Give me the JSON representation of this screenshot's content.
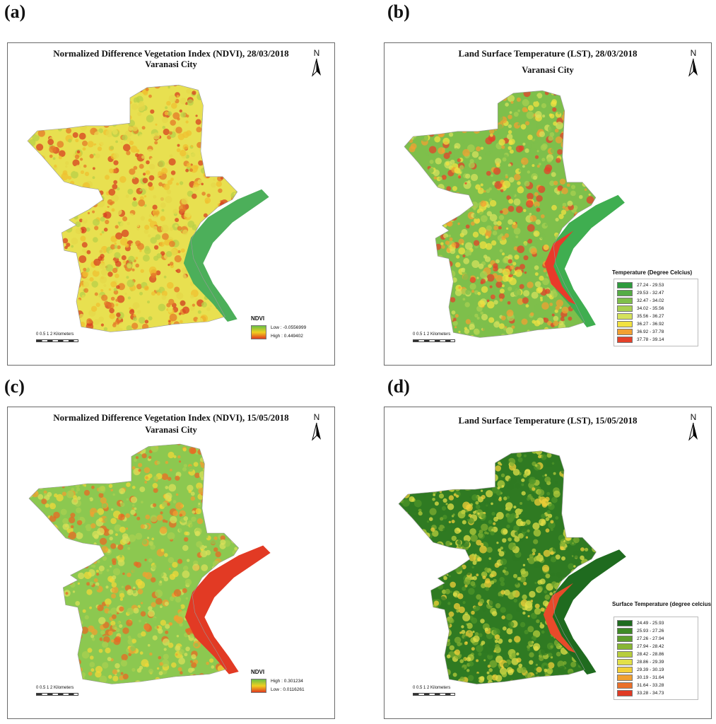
{
  "figure": {
    "panels": [
      {
        "letter": "(a)",
        "title": "Normalized Difference Vegetation Index (NDVI), 28/03/2018",
        "subtitle": "Varanasi City",
        "north": "N",
        "scale": {
          "numbers": "0  0.5  1       2 Kilometers"
        },
        "legend": {
          "kind": "gradient",
          "title": "NDVI",
          "top_label": "Low : -0.0556999",
          "bottom_label": "High : 0.449402",
          "gradient": [
            "#6abf45",
            "#f0d020",
            "#e03a1e"
          ]
        },
        "palette": [
          "#e8e050",
          "#e6d84a",
          "#f0c030",
          "#b8d048",
          "#e57a28",
          "#d84020"
        ],
        "river_color": "#4caf5a"
      },
      {
        "letter": "(b)",
        "title": "Land Surface Temperature (LST), 28/03/2018",
        "subtitle": "Varanasi City",
        "north": "N",
        "scale": {
          "numbers": "0  0.5  1       2 Kilometers"
        },
        "legend": {
          "kind": "classes",
          "title": "Temperature (Degree Celcius)",
          "classes": [
            {
              "label": "27.24 - 29.53",
              "color": "#2e9b3e"
            },
            {
              "label": "29.53 - 32.47",
              "color": "#55ac45"
            },
            {
              "label": "32.47 - 34.02",
              "color": "#7ebf4b"
            },
            {
              "label": "34.02 - 35.56",
              "color": "#a8d050"
            },
            {
              "label": "35.56 - 36.27",
              "color": "#d5e25c"
            },
            {
              "label": "36.27 - 36.92",
              "color": "#f2e240"
            },
            {
              "label": "36.92 - 37.78",
              "color": "#f2a032"
            },
            {
              "label": "37.78 - 39.14",
              "color": "#e4412a"
            }
          ]
        },
        "palette": [
          "#7ebf4b",
          "#a8d050",
          "#d5e25c",
          "#f2e240",
          "#f2a032",
          "#e4412a"
        ],
        "river_color": "#3fae50",
        "hot_bank_color": "#e83a2a"
      },
      {
        "letter": "(c)",
        "title": "Normalized Difference Vegetation Index (NDVI), 15/05/2018",
        "subtitle": "Varanasi City",
        "north": "N",
        "scale": {
          "numbers": "0  0.5  1       2 Kilometers"
        },
        "legend": {
          "kind": "gradient",
          "title": "NDVI",
          "top_label": "High : 0.301234",
          "bottom_label": "Low : 0.0116261",
          "gradient": [
            "#6abf45",
            "#f0d020",
            "#e03a1e"
          ]
        },
        "palette": [
          "#8cc850",
          "#a8d050",
          "#d8e05a",
          "#f0d838",
          "#f0a030",
          "#e86a24"
        ],
        "river_color": "#e23a24"
      },
      {
        "letter": "(d)",
        "title": "Land Surface Temperature (LST), 15/05/2018",
        "subtitle": "",
        "north": "N",
        "scale": {
          "numbers": "0  0.5  1       2 Kilometers"
        },
        "legend": {
          "kind": "classes",
          "title": "Surface Temperature (degree celcius)",
          "classes": [
            {
              "label": "24.49 - 25.93",
              "color": "#1f6b1f"
            },
            {
              "label": "25.93 - 27.26",
              "color": "#3f8a26"
            },
            {
              "label": "27.26 - 27.94",
              "color": "#5e9e2c"
            },
            {
              "label": "27.94 - 28.42",
              "color": "#88b634"
            },
            {
              "label": "28.42 - 28.86",
              "color": "#b7cd3c"
            },
            {
              "label": "28.86 - 29.39",
              "color": "#e2e048"
            },
            {
              "label": "29.39 - 30.19",
              "color": "#f2d038"
            },
            {
              "label": "30.19 - 31.64",
              "color": "#f0a030"
            },
            {
              "label": "31.64 - 33.28",
              "color": "#ea702a"
            },
            {
              "label": "33.28 - 34.73",
              "color": "#e03a24"
            }
          ]
        },
        "palette": [
          "#2f7a22",
          "#4e9428",
          "#7fae30",
          "#b7cd3c",
          "#e2e048",
          "#f2d038"
        ],
        "river_color": "#1f6b1f",
        "hot_bank_color": "#e84a2a"
      }
    ]
  }
}
